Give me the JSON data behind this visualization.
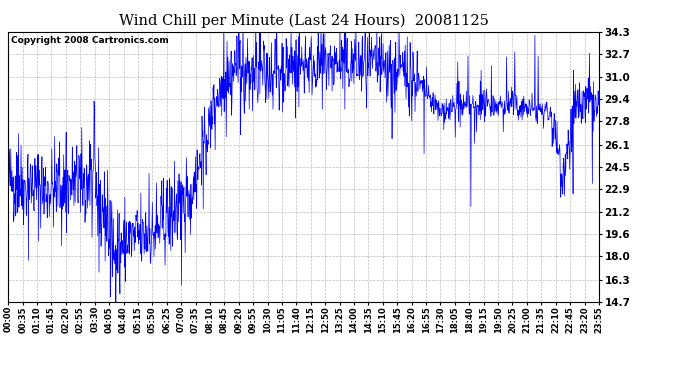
{
  "title": "Wind Chill per Minute (Last 24 Hours)  20081125",
  "copyright": "Copyright 2008 Cartronics.com",
  "line_color": "#0000FF",
  "background_color": "#FFFFFF",
  "plot_bg_color": "#FFFFFF",
  "grid_color": "#BBBBBB",
  "ylim": [
    14.7,
    34.3
  ],
  "yticks": [
    14.7,
    16.3,
    18.0,
    19.6,
    21.2,
    22.9,
    24.5,
    26.1,
    27.8,
    29.4,
    31.0,
    32.7,
    34.3
  ],
  "xtick_labels": [
    "00:00",
    "00:35",
    "01:10",
    "01:45",
    "02:20",
    "02:55",
    "03:30",
    "04:05",
    "04:40",
    "05:15",
    "05:50",
    "06:25",
    "07:00",
    "07:35",
    "08:10",
    "08:45",
    "09:20",
    "09:55",
    "10:30",
    "11:05",
    "11:40",
    "12:15",
    "12:50",
    "13:25",
    "14:00",
    "14:35",
    "15:10",
    "15:45",
    "16:20",
    "16:55",
    "17:30",
    "18:05",
    "18:40",
    "19:15",
    "19:50",
    "20:25",
    "21:00",
    "21:35",
    "22:10",
    "22:45",
    "23:20",
    "23:55"
  ],
  "num_points": 1440
}
